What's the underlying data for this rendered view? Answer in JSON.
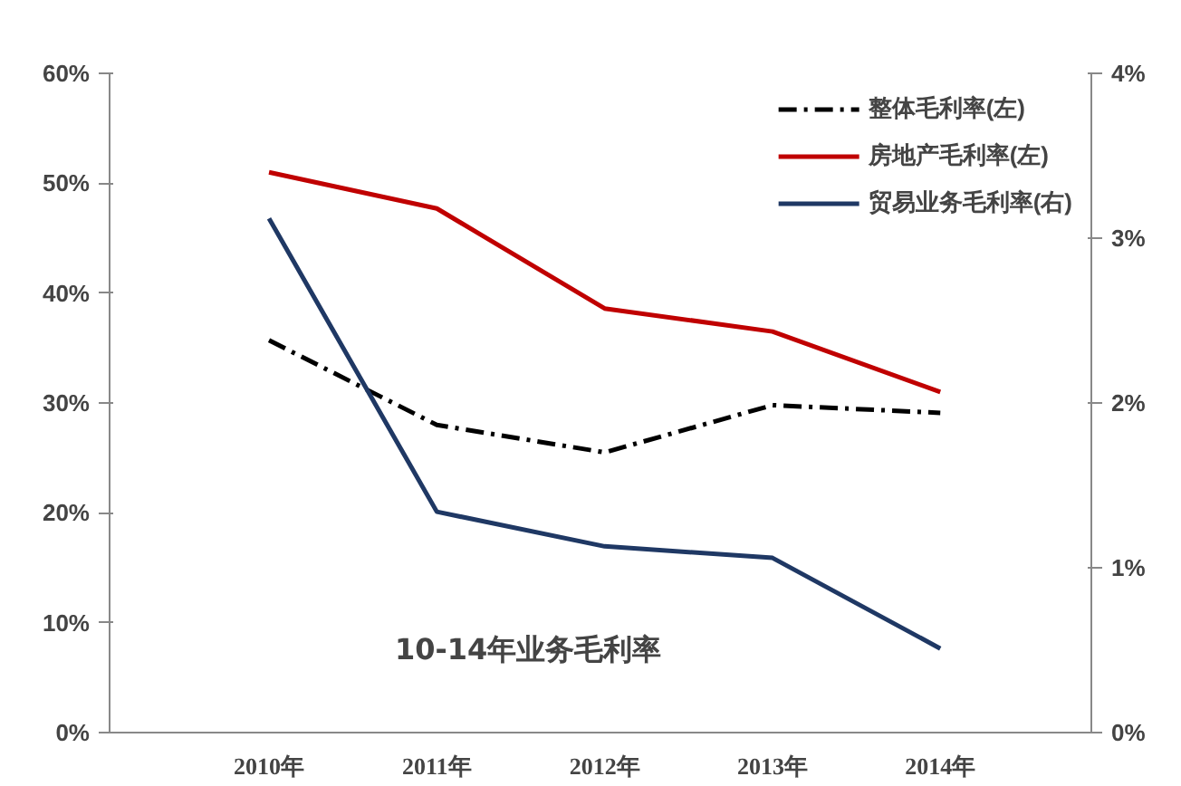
{
  "chart_data": {
    "type": "line",
    "categories": [
      "2010年",
      "2011年",
      "2012年",
      "2013年",
      "2014年"
    ],
    "series": [
      {
        "name": "整体毛利率(左)",
        "color": "#000000",
        "values": [
          35.7,
          28,
          25.5,
          29.8,
          29.1
        ],
        "line_style": "dashed"
      },
      {
        "name": "房地产毛利率(左)",
        "color": "#c00000",
        "values": [
          51,
          47.7,
          38.6,
          36.5,
          31
        ],
        "line_style": "solid"
      },
      {
        "name": "贸易业务毛利率(右)",
        "color": "#1f3864",
        "values": [
          3.12,
          1.34,
          1.13,
          1.06,
          0.51
        ],
        "axis": "y2",
        "line_style": "solid"
      }
    ],
    "ylim": [
      0,
      60
    ],
    "yticks": [
      {
        "value": 0,
        "label": "0%"
      },
      {
        "value": 10,
        "label": "10%"
      },
      {
        "value": 20,
        "label": "20%"
      },
      {
        "value": 30,
        "label": "30%"
      },
      {
        "value": 40,
        "label": "40%"
      },
      {
        "value": 50,
        "label": "50%"
      },
      {
        "value": 60,
        "label": "60%"
      }
    ],
    "y2lim": [
      0,
      4
    ],
    "y2ticks": [
      {
        "value": 0,
        "label": "0%"
      },
      {
        "value": 1,
        "label": "1%"
      },
      {
        "value": 2,
        "label": "2%"
      },
      {
        "value": 3,
        "label": "3%"
      },
      {
        "value": 4,
        "label": "4%"
      }
    ],
    "annotations": [
      "10-14年业务毛利率"
    ],
    "legend": "top right",
    "grid": false,
    "marker": "none"
  }
}
